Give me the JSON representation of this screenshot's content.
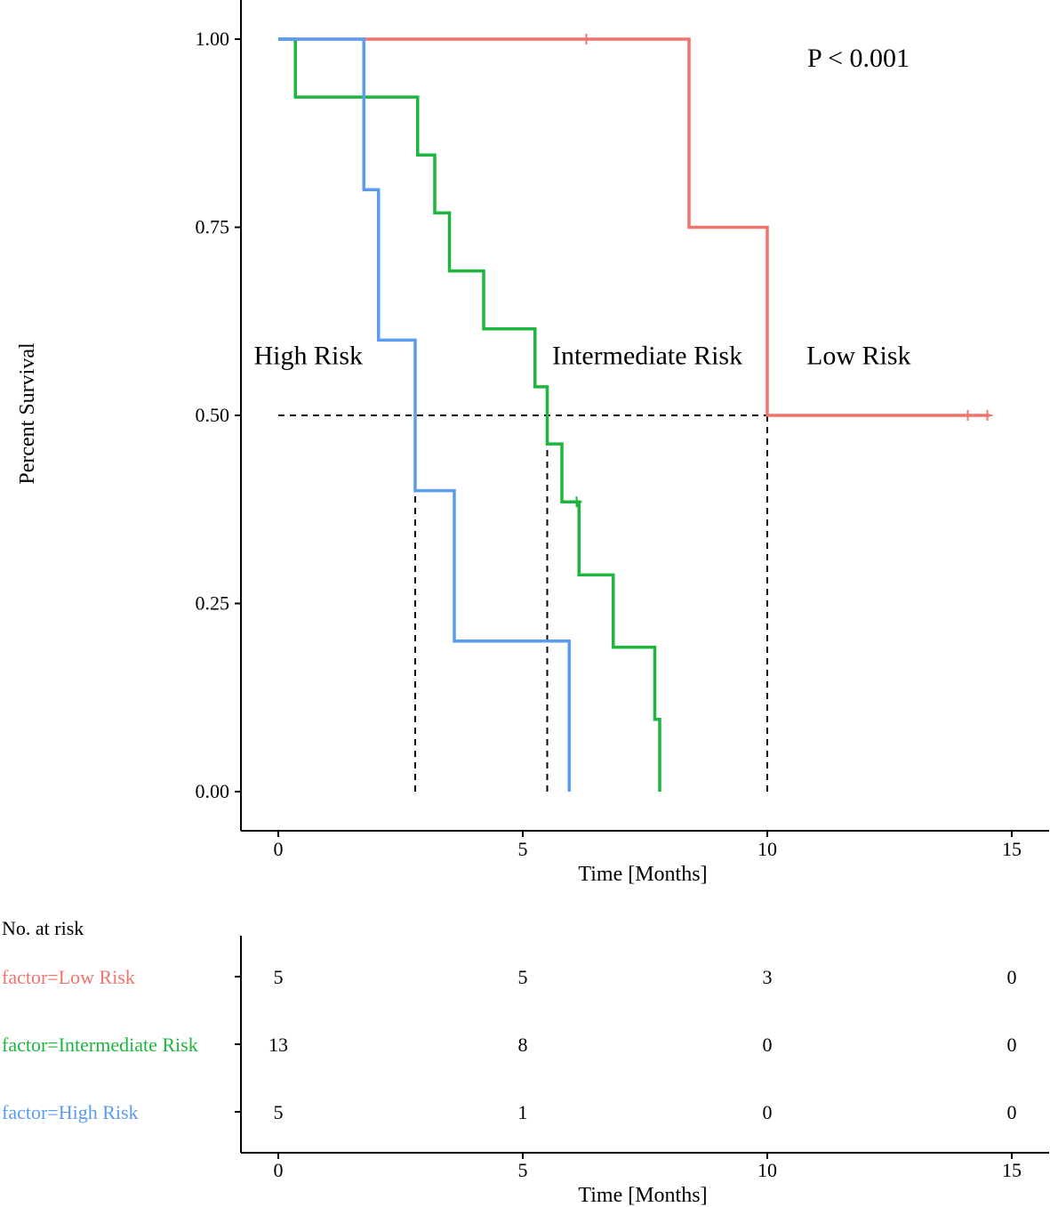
{
  "chart_data": {
    "type": "line",
    "subtype": "kaplan-meier",
    "ylabel": "Percent Survival",
    "xlabel": "Time [Months]",
    "xlim": [
      0,
      15
    ],
    "ylim": [
      0,
      1
    ],
    "x_ticks": [
      0,
      5,
      10,
      15
    ],
    "y_ticks": [
      "0.00",
      "0.25",
      "0.50",
      "0.75",
      "1.00"
    ],
    "y_tick_values": [
      0,
      0.25,
      0.5,
      0.75,
      1
    ],
    "p_value_text": "P < 0.001",
    "group_labels": [
      {
        "text": "High Risk",
        "x": -0.5,
        "y": 0.58
      },
      {
        "text": "Intermediate Risk",
        "x": 5.6,
        "y": 0.58
      },
      {
        "text": "Low Risk",
        "x": 10.8,
        "y": 0.58
      }
    ],
    "median_line": {
      "y": 0.5,
      "x_start": 0,
      "x_end": 10,
      "drops": [
        2.8,
        5.5,
        10
      ]
    },
    "series": [
      {
        "name": "Low Risk",
        "color": "#F0746B",
        "steps": [
          [
            0,
            1.0
          ],
          [
            8.4,
            0.75
          ],
          [
            10.0,
            0.5
          ],
          [
            14.55,
            0.5
          ]
        ],
        "censored": [
          [
            6.3,
            1.0
          ],
          [
            14.1,
            0.5
          ],
          [
            14.5,
            0.5
          ]
        ]
      },
      {
        "name": "Intermediate Risk",
        "color": "#1DB53D",
        "steps": [
          [
            0,
            1.0
          ],
          [
            0.35,
            0.923
          ],
          [
            2.85,
            0.846
          ],
          [
            3.2,
            0.769
          ],
          [
            3.5,
            0.692
          ],
          [
            4.2,
            0.615
          ],
          [
            5.25,
            0.538
          ],
          [
            5.5,
            0.462
          ],
          [
            5.8,
            0.385
          ],
          [
            6.15,
            0.288
          ],
          [
            6.85,
            0.192
          ],
          [
            7.7,
            0.096
          ],
          [
            7.8,
            0.0
          ]
        ],
        "censored": [
          [
            6.1,
            0.385
          ]
        ]
      },
      {
        "name": "High Risk",
        "color": "#5B9BF0",
        "steps": [
          [
            0,
            1.0
          ],
          [
            1.75,
            0.8
          ],
          [
            2.05,
            0.6
          ],
          [
            2.8,
            0.4
          ],
          [
            3.6,
            0.2
          ],
          [
            5.95,
            0.0
          ]
        ],
        "censored": []
      }
    ],
    "risk_table": {
      "title": "No. at risk",
      "xlabel": "Time [Months]",
      "times": [
        0,
        5,
        10,
        15
      ],
      "x_ticks": [
        0,
        5,
        10,
        15
      ],
      "rows": [
        {
          "label": "factor=Low Risk",
          "color": "#F0746B",
          "counts": [
            5,
            5,
            3,
            0
          ]
        },
        {
          "label": "factor=Intermediate Risk",
          "color": "#1DB53D",
          "counts": [
            13,
            8,
            0,
            0
          ]
        },
        {
          "label": "factor=High Risk",
          "color": "#5B9BF0",
          "counts": [
            5,
            1,
            0,
            0
          ]
        }
      ]
    }
  }
}
